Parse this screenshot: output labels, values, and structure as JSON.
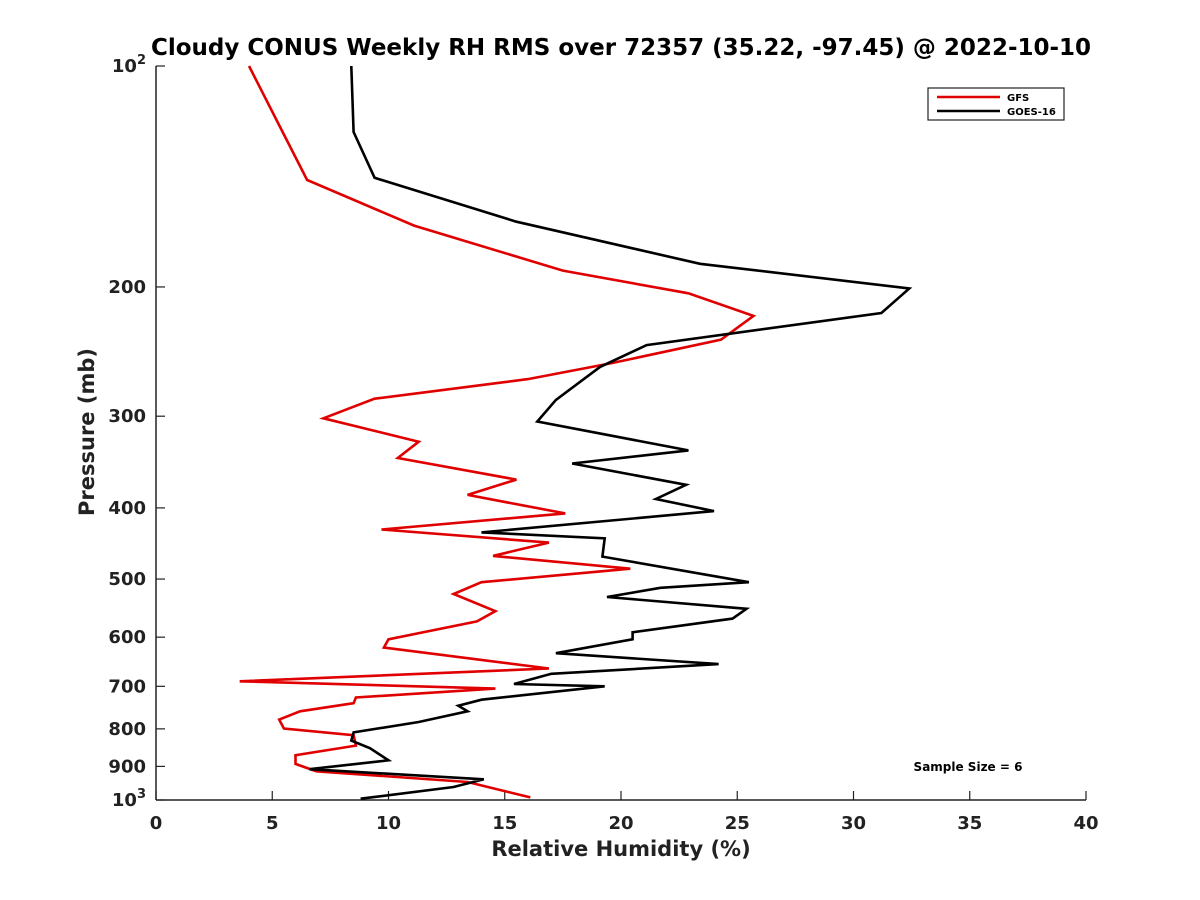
{
  "chart_data": {
    "type": "line",
    "title": "Cloudy CONUS Weekly RH RMS over 72357 (35.22, -97.45) @ 2022-10-10",
    "xlabel": "Relative Humidity (%)",
    "ylabel": "Pressure (mb)",
    "xlim": [
      0,
      40
    ],
    "ylim": [
      100,
      1000
    ],
    "y_scale": "log",
    "y_reversed": true,
    "grid": false,
    "legend_position": "top-right",
    "x_ticks": [
      "0",
      "5",
      "10",
      "15",
      "20",
      "25",
      "30",
      "35",
      "40"
    ],
    "y_ticks": [
      {
        "value": 100,
        "label": "10",
        "sup": "2"
      },
      {
        "value": 200,
        "label": "200",
        "sup": ""
      },
      {
        "value": 300,
        "label": "300",
        "sup": ""
      },
      {
        "value": 400,
        "label": "400",
        "sup": ""
      },
      {
        "value": 500,
        "label": "500",
        "sup": ""
      },
      {
        "value": 600,
        "label": "600",
        "sup": ""
      },
      {
        "value": 700,
        "label": "700",
        "sup": ""
      },
      {
        "value": 800,
        "label": "800",
        "sup": ""
      },
      {
        "value": 900,
        "label": "900",
        "sup": ""
      },
      {
        "value": 1000,
        "label": "10",
        "sup": "3"
      }
    ],
    "annotation": "Sample Size = 6",
    "series": [
      {
        "name": "GFS",
        "color": "#e00000",
        "points": [
          [
            4.0,
            100
          ],
          [
            6.5,
            143
          ],
          [
            11.1,
            165
          ],
          [
            17.5,
            190
          ],
          [
            22.9,
            204
          ],
          [
            25.7,
            219
          ],
          [
            24.3,
            236
          ],
          [
            19.6,
            254
          ],
          [
            16.0,
            267
          ],
          [
            9.4,
            284
          ],
          [
            7.2,
            302
          ],
          [
            11.3,
            325
          ],
          [
            10.4,
            342
          ],
          [
            15.5,
            366
          ],
          [
            13.4,
            384
          ],
          [
            17.6,
            407
          ],
          [
            9.7,
            428
          ],
          [
            16.9,
            446
          ],
          [
            14.5,
            465
          ],
          [
            20.4,
            484
          ],
          [
            14.0,
            505
          ],
          [
            12.8,
            524
          ],
          [
            14.6,
            553
          ],
          [
            13.8,
            571
          ],
          [
            10.0,
            604
          ],
          [
            9.8,
            620
          ],
          [
            16.9,
            662
          ],
          [
            3.6,
            689
          ],
          [
            14.6,
            705
          ],
          [
            8.6,
            725
          ],
          [
            8.5,
            738
          ],
          [
            6.2,
            757
          ],
          [
            5.3,
            777
          ],
          [
            5.5,
            799
          ],
          [
            8.5,
            816
          ],
          [
            8.6,
            843
          ],
          [
            6.0,
            869
          ],
          [
            6.0,
            893
          ],
          [
            6.9,
            914
          ],
          [
            13.4,
            945
          ],
          [
            16.1,
            992
          ]
        ]
      },
      {
        "name": "GOES-16",
        "color": "#000000",
        "points": [
          [
            8.4,
            100
          ],
          [
            8.5,
            123
          ],
          [
            9.4,
            142
          ],
          [
            15.5,
            163
          ],
          [
            23.4,
            186
          ],
          [
            32.4,
            201
          ],
          [
            31.2,
            217
          ],
          [
            21.1,
            240
          ],
          [
            19.1,
            257
          ],
          [
            17.2,
            285
          ],
          [
            16.4,
            305
          ],
          [
            22.9,
            334
          ],
          [
            17.9,
            348
          ],
          [
            22.8,
            372
          ],
          [
            21.5,
            389
          ],
          [
            24.0,
            404
          ],
          [
            14.0,
            432
          ],
          [
            19.3,
            440
          ],
          [
            19.2,
            466
          ],
          [
            25.5,
            505
          ],
          [
            21.7,
            514
          ],
          [
            19.4,
            529
          ],
          [
            25.4,
            549
          ],
          [
            24.8,
            566
          ],
          [
            20.5,
            591
          ],
          [
            20.5,
            604
          ],
          [
            17.2,
            631
          ],
          [
            24.2,
            653
          ],
          [
            17.0,
            673
          ],
          [
            15.4,
            695
          ],
          [
            19.3,
            700
          ],
          [
            14.0,
            730
          ],
          [
            13.0,
            744
          ],
          [
            13.4,
            757
          ],
          [
            11.3,
            783
          ],
          [
            8.5,
            809
          ],
          [
            8.4,
            830
          ],
          [
            9.2,
            850
          ],
          [
            10.0,
            883
          ],
          [
            6.6,
            908
          ],
          [
            14.1,
            937
          ],
          [
            12.8,
            960
          ],
          [
            8.8,
            996
          ]
        ]
      }
    ]
  }
}
